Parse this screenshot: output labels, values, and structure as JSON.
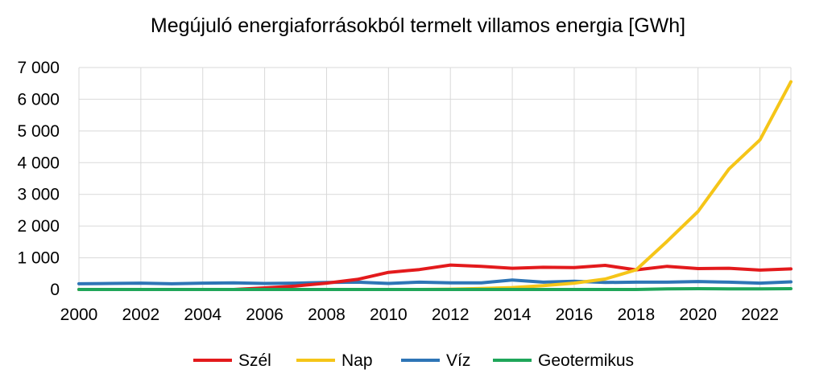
{
  "chart_data": {
    "type": "line",
    "title": "Megújuló energiaforrásokból termelt villamos energia [GWh]",
    "xlabel": "",
    "ylabel": "",
    "x": [
      2000,
      2001,
      2002,
      2003,
      2004,
      2005,
      2006,
      2007,
      2008,
      2009,
      2010,
      2011,
      2012,
      2013,
      2014,
      2015,
      2016,
      2017,
      2018,
      2019,
      2020,
      2021,
      2022,
      2023
    ],
    "xlim": [
      2000,
      2023
    ],
    "ylim": [
      0,
      7000
    ],
    "x_ticks": [
      "2000",
      "2002",
      "2004",
      "2006",
      "2008",
      "2010",
      "2012",
      "2014",
      "2016",
      "2018",
      "2020",
      "2022"
    ],
    "y_ticks": [
      "0",
      "1 000",
      "2 000",
      "3 000",
      "4 000",
      "5 000",
      "6 000",
      "7 000"
    ],
    "grid": true,
    "legend_position": "bottom",
    "series": [
      {
        "name": "Szél",
        "color": "#e31a1c",
        "values": [
          0,
          0,
          0,
          0,
          0,
          0,
          50,
          110,
          200,
          320,
          540,
          630,
          770,
          730,
          670,
          700,
          690,
          760,
          620,
          730,
          660,
          670,
          610,
          650
        ]
      },
      {
        "name": "Nap",
        "color": "#f5c518",
        "values": [
          0,
          0,
          0,
          0,
          0,
          0,
          0,
          0,
          0,
          0,
          0,
          0,
          10,
          30,
          60,
          120,
          200,
          330,
          620,
          1520,
          2460,
          3800,
          4720,
          6550
        ]
      },
      {
        "name": "Víz",
        "color": "#2e75b6",
        "values": [
          180,
          190,
          200,
          180,
          200,
          210,
          190,
          200,
          220,
          230,
          190,
          230,
          210,
          210,
          300,
          230,
          260,
          220,
          230,
          230,
          250,
          230,
          200,
          240
        ]
      },
      {
        "name": "Geotermikus",
        "color": "#1fa65a",
        "values": [
          0,
          0,
          0,
          0,
          0,
          0,
          0,
          0,
          0,
          0,
          0,
          0,
          0,
          0,
          0,
          0,
          0,
          0,
          0,
          20,
          25,
          20,
          20,
          25
        ]
      }
    ]
  }
}
